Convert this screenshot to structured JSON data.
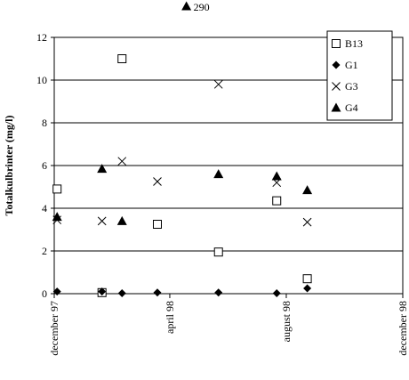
{
  "chart_data": {
    "type": "scatter",
    "title": "",
    "xlabel": "",
    "ylabel": "Totalkulbrinter (mg/l)",
    "ylim": [
      0,
      12
    ],
    "yticks": [
      "0",
      "2",
      "4",
      "6",
      "8",
      "10",
      "12"
    ],
    "xlim": [
      "1997-12-01",
      "1998-12-01"
    ],
    "xticks": [
      {
        "date": "1997-12-01",
        "label": "december 97"
      },
      {
        "date": "1998-04-01",
        "label": "april 98"
      },
      {
        "date": "1998-08-01",
        "label": "august 98"
      },
      {
        "date": "1998-12-01",
        "label": "december 98"
      }
    ],
    "grid": "horizontal",
    "legend_position": "top-right",
    "series": [
      {
        "name": "B13",
        "marker": "square-open",
        "points": [
          {
            "x": "1997-12-04",
            "y": 4.9
          },
          {
            "x": "1998-01-20",
            "y": 0.05
          },
          {
            "x": "1998-02-10",
            "y": 11.0
          },
          {
            "x": "1998-03-19",
            "y": 3.25
          },
          {
            "x": "1998-05-22",
            "y": 1.95
          },
          {
            "x": "1998-07-22",
            "y": 4.35
          },
          {
            "x": "1998-08-23",
            "y": 0.7
          }
        ]
      },
      {
        "name": "G1",
        "marker": "diamond-filled",
        "points": [
          {
            "x": "1997-12-04",
            "y": 0.1
          },
          {
            "x": "1998-01-20",
            "y": 0.1
          },
          {
            "x": "1998-02-10",
            "y": 0.02
          },
          {
            "x": "1998-03-19",
            "y": 0.05
          },
          {
            "x": "1998-05-22",
            "y": 0.05
          },
          {
            "x": "1998-07-22",
            "y": 0.02
          },
          {
            "x": "1998-08-23",
            "y": 0.25
          }
        ]
      },
      {
        "name": "G3",
        "marker": "cross",
        "points": [
          {
            "x": "1997-12-04",
            "y": 3.45
          },
          {
            "x": "1998-01-20",
            "y": 3.4
          },
          {
            "x": "1998-02-10",
            "y": 6.2
          },
          {
            "x": "1998-03-19",
            "y": 5.25
          },
          {
            "x": "1998-05-22",
            "y": 9.8
          },
          {
            "x": "1998-07-22",
            "y": 5.2
          },
          {
            "x": "1998-08-23",
            "y": 3.35
          }
        ]
      },
      {
        "name": "G4",
        "marker": "triangle-filled",
        "points": [
          {
            "x": "1997-12-04",
            "y": 3.6
          },
          {
            "x": "1998-01-20",
            "y": 5.85
          },
          {
            "x": "1998-02-10",
            "y": 3.4
          },
          {
            "x": "1998-05-22",
            "y": 5.6
          },
          {
            "x": "1998-07-22",
            "y": 5.5
          },
          {
            "x": "1998-08-23",
            "y": 4.85
          }
        ]
      }
    ],
    "annotations": [
      {
        "series": "G4",
        "marker": "triangle-filled",
        "x": "1998-04-24",
        "text": "290"
      }
    ],
    "colors": {
      "marker": "#000000",
      "grid": "#000000",
      "background": "#ffffff"
    }
  }
}
